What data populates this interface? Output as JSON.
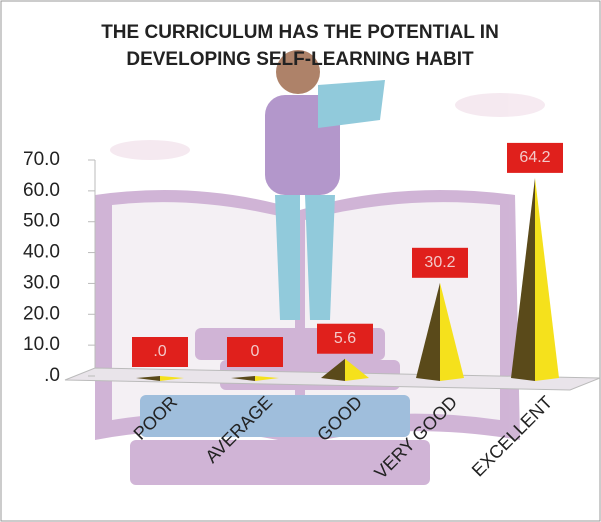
{
  "chart_data": {
    "type": "pyramid",
    "title": [
      "THE CURRICULUM HAS THE POTENTIAL IN",
      "DEVELOPING SELF-LEARNING HABIT"
    ],
    "categories": [
      "POOR",
      "AVERAGE",
      "GOOD",
      "VERY GOOD",
      "EXCELLENT"
    ],
    "values": [
      0,
      0,
      5.6,
      30.2,
      64.2
    ],
    "value_labels": [
      ".0",
      "0",
      "5.6",
      "30.2",
      "64.2"
    ],
    "ylim": [
      0,
      70
    ],
    "yticks": [
      {
        "value": 0,
        "label": ".0"
      },
      {
        "value": 10,
        "label": "10.0"
      },
      {
        "value": 20,
        "label": "20.0"
      },
      {
        "value": 30,
        "label": "30.0"
      },
      {
        "value": 40,
        "label": "40.0"
      },
      {
        "value": 50,
        "label": "50.0"
      },
      {
        "value": 60,
        "label": "60.0"
      },
      {
        "value": 70,
        "label": "70.0"
      }
    ],
    "color": "#f5e11c",
    "shade_color": "#5a4a1a",
    "label_color": "#e0201c"
  }
}
